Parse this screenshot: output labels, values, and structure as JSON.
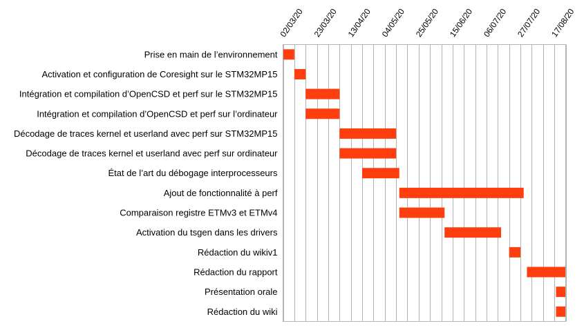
{
  "chart_data": {
    "type": "bar",
    "subtype": "gantt",
    "title": "",
    "xlabel": "",
    "ylabel": "",
    "grid": true,
    "legend": "none",
    "bar_color": "#ff3e0f",
    "x_axis": {
      "kind": "date",
      "ticks": [
        "02/03/20",
        "23/03/20",
        "13/04/20",
        "04/05/20",
        "25/05/20",
        "15/06/20",
        "06/07/20",
        "27/07/20",
        "17/08/20"
      ],
      "range": [
        "2020-03-02",
        "2020-08-24"
      ]
    },
    "tasks": [
      {
        "name": "Prise en main de l’environnement",
        "start": "2020-03-02",
        "end": "2020-03-09"
      },
      {
        "name": "Activation et configuration de Coresight sur le STM32MP15",
        "start": "2020-03-09",
        "end": "2020-03-16"
      },
      {
        "name": "Intégration et compilation d’OpenCSD et perf sur le STM32MP15",
        "start": "2020-03-16",
        "end": "2020-04-06"
      },
      {
        "name": "Intégration et compilation d’OpenCSD et perf sur l’ordinateur",
        "start": "2020-03-16",
        "end": "2020-04-06"
      },
      {
        "name": "Décodage de traces kernel et userland avec perf sur STM32MP15",
        "start": "2020-04-06",
        "end": "2020-05-11"
      },
      {
        "name": "Décodage de traces kernel et userland avec perf sur ordinateur",
        "start": "2020-04-06",
        "end": "2020-05-11"
      },
      {
        "name": "État de l’art du débogage interprocesseurs",
        "start": "2020-04-20",
        "end": "2020-05-13"
      },
      {
        "name": "Ajout de fonctionnalité à perf",
        "start": "2020-05-13",
        "end": "2020-07-29"
      },
      {
        "name": "Comparaison registre ETMv3 et ETMv4",
        "start": "2020-05-13",
        "end": "2020-06-10"
      },
      {
        "name": "Activation du tsgen dans les drivers",
        "start": "2020-06-10",
        "end": "2020-07-15"
      },
      {
        "name": "Rédaction du wikiv1",
        "start": "2020-07-20",
        "end": "2020-07-27"
      },
      {
        "name": "Rédaction du rapport",
        "start": "2020-07-31",
        "end": "2020-08-24"
      },
      {
        "name": "Présentation orale",
        "start": "2020-08-18",
        "end": "2020-08-24"
      },
      {
        "name": "Rédaction du wiki",
        "start": "2020-08-18",
        "end": "2020-08-24"
      }
    ]
  }
}
